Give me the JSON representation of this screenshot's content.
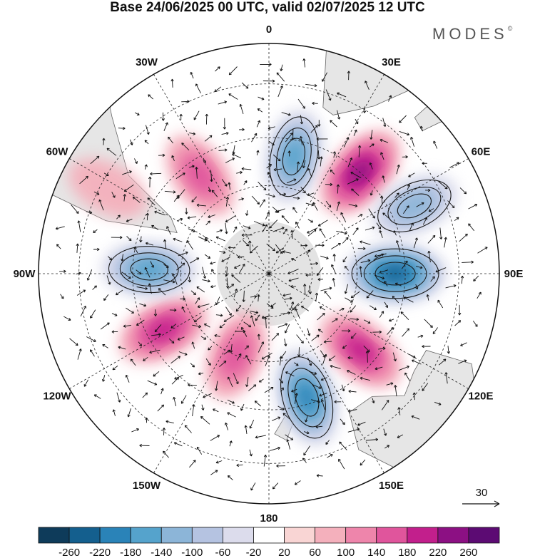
{
  "title": "Base 24/06/2025 00 UTC, valid 02/07/2025 12 UTC",
  "brand": "MODES",
  "brand_mark": "©",
  "map": {
    "projection": "south-polar-stereographic",
    "meridian_labels": [
      {
        "text": "0",
        "lon": 0
      },
      {
        "text": "30E",
        "lon": 30
      },
      {
        "text": "60E",
        "lon": 60
      },
      {
        "text": "90E",
        "lon": 90
      },
      {
        "text": "120E",
        "lon": 120
      },
      {
        "text": "150E",
        "lon": 150
      },
      {
        "text": "180",
        "lon": 180
      },
      {
        "text": "150W",
        "lon": -150
      },
      {
        "text": "120W",
        "lon": -120
      },
      {
        "text": "90W",
        "lon": -90
      },
      {
        "text": "60W",
        "lon": -60
      },
      {
        "text": "30W",
        "lon": -30
      }
    ],
    "anomaly_centers": [
      {
        "sign": "negative",
        "lon": 12,
        "lat": -50,
        "value": -180
      },
      {
        "sign": "positive",
        "lon": 42,
        "lat": -45,
        "value": 220
      },
      {
        "sign": "negative",
        "lon": 65,
        "lat": -38,
        "value": -140
      },
      {
        "sign": "negative",
        "lon": 90,
        "lat": -48,
        "value": -260
      },
      {
        "sign": "positive",
        "lon": 130,
        "lat": -50,
        "value": 180
      },
      {
        "sign": "negative",
        "lon": 163,
        "lat": -47,
        "value": -220
      },
      {
        "sign": "positive",
        "lon": -158,
        "lat": -60,
        "value": 140
      },
      {
        "sign": "positive",
        "lon": -118,
        "lat": -50,
        "value": 180
      },
      {
        "sign": "negative",
        "lon": -88,
        "lat": -50,
        "value": -180
      },
      {
        "sign": "positive",
        "lon": -35,
        "lat": -50,
        "value": 140
      },
      {
        "sign": "positive",
        "lon": -62,
        "lat": -32,
        "value": 60
      }
    ]
  },
  "vector_key": {
    "label": "30"
  },
  "colorbar": {
    "ticks": [
      "-260",
      "-220",
      "-180",
      "-140",
      "-100",
      "-60",
      "-20",
      "20",
      "60",
      "100",
      "140",
      "180",
      "220",
      "260"
    ],
    "colors": [
      "#0e3b5a",
      "#145f8e",
      "#2a83b8",
      "#55a3cc",
      "#8cb5d8",
      "#b5c3e1",
      "#dcdcec",
      "#ffffff",
      "#f9d5d4",
      "#f4b0bc",
      "#ee85ab",
      "#e0559c",
      "#c21f8c",
      "#8c1083",
      "#5c0b73"
    ]
  }
}
